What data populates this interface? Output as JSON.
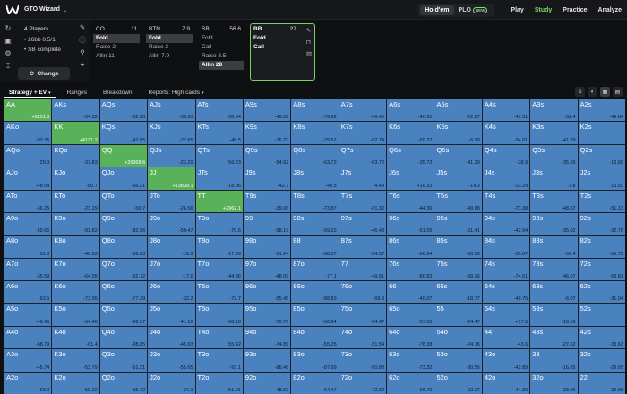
{
  "app": {
    "title": "GTO Wizard"
  },
  "nav": {
    "modes": [
      "Hold'em",
      "PLO"
    ],
    "new_badge": "NEW",
    "items": [
      "Play",
      "Study",
      "Practice",
      "Analyze"
    ]
  },
  "spot": {
    "title": "4 Players",
    "line1": "26bb 0.5/1",
    "line2": "SB complete",
    "change": "Change"
  },
  "positions": [
    {
      "name": "CO",
      "stack": "11",
      "actions": [
        "Fold",
        "Raise 2",
        "Allin 11"
      ],
      "selected": 0
    },
    {
      "name": "BTN",
      "stack": "7.9",
      "actions": [
        "Fold",
        "Raise 2",
        "Allin 7.9"
      ],
      "selected": 0
    },
    {
      "name": "SB",
      "stack": "56.6",
      "actions": [
        "Fold",
        "Call",
        "Raise 3.5",
        "Allin 28"
      ],
      "selected": 3
    },
    {
      "name": "BB",
      "stack": "27",
      "actions": [
        "Fold",
        "Call"
      ]
    }
  ],
  "tabs": {
    "strategy": "Strategy + EV",
    "ranges": "Ranges",
    "breakdown": "Breakdown",
    "reports": "Reports: High cards"
  },
  "colors": {
    "accent": "#7fd36f",
    "fold": "#4a82c0",
    "call": "#59b15a"
  },
  "matrix": {
    "hands": [
      [
        "AA",
        "AKs",
        "AQs",
        "AJs",
        "ATs",
        "A9s",
        "A8s",
        "A7s",
        "A6s",
        "A5s",
        "A4s",
        "A3s",
        "A2s"
      ],
      [
        "AKo",
        "KK",
        "KQs",
        "KJs",
        "KTs",
        "K9s",
        "K8s",
        "K7s",
        "K6s",
        "K5s",
        "K4s",
        "K3s",
        "K2s"
      ],
      [
        "AQo",
        "KQo",
        "QQ",
        "QJs",
        "QTs",
        "Q9s",
        "Q8s",
        "Q7s",
        "Q6s",
        "Q5s",
        "Q4s",
        "Q3s",
        "Q2s"
      ],
      [
        "AJo",
        "KJo",
        "QJo",
        "JJ",
        "JTs",
        "J9s",
        "J8s",
        "J7s",
        "J6s",
        "J5s",
        "J4s",
        "J3s",
        "J2s"
      ],
      [
        "ATo",
        "KTo",
        "QTo",
        "JTo",
        "TT",
        "T9s",
        "T8s",
        "T7s",
        "T6s",
        "T5s",
        "T4s",
        "T3s",
        "T2s"
      ],
      [
        "A9o",
        "K9o",
        "Q9o",
        "J9o",
        "T9o",
        "99",
        "98s",
        "97s",
        "96s",
        "95s",
        "94s",
        "93s",
        "92s"
      ],
      [
        "A8o",
        "K8o",
        "Q8o",
        "J8o",
        "T8o",
        "98o",
        "88",
        "87s",
        "86s",
        "85s",
        "84s",
        "83s",
        "82s"
      ],
      [
        "A7o",
        "K7o",
        "Q7o",
        "J7o",
        "T7o",
        "97o",
        "87o",
        "77",
        "76s",
        "75s",
        "74s",
        "73s",
        "72s"
      ],
      [
        "A6o",
        "K6o",
        "Q6o",
        "J6o",
        "T6o",
        "96o",
        "86o",
        "76o",
        "66",
        "65s",
        "64s",
        "63s",
        "62s"
      ],
      [
        "A5o",
        "K5o",
        "Q5o",
        "J5o",
        "T5o",
        "95o",
        "85o",
        "75o",
        "65o",
        "55",
        "54s",
        "53s",
        "52s"
      ],
      [
        "A4o",
        "K4o",
        "Q4o",
        "J4o",
        "T4o",
        "94o",
        "84o",
        "74o",
        "64o",
        "54o",
        "44",
        "43s",
        "42s"
      ],
      [
        "A3o",
        "K3o",
        "Q3o",
        "J3o",
        "T3o",
        "93o",
        "83o",
        "73o",
        "63o",
        "53o",
        "43o",
        "33",
        "32s"
      ],
      [
        "A2o",
        "K2o",
        "Q2o",
        "J2o",
        "T2o",
        "92o",
        "82o",
        "72o",
        "62o",
        "52o",
        "42o",
        "32o",
        "22"
      ]
    ],
    "evs": [
      [
        "+5251.0",
        "-54.52",
        "-52.23",
        "-30.33",
        "-38.34",
        "-43.32",
        "-79.62",
        "-49.45",
        "-40.91",
        "-22.87",
        "-47.31",
        "-32.4",
        "-49.84"
      ],
      [
        "-50.35",
        "+4131.2",
        "-47.65",
        "-22.65",
        "-48.5",
        "-76.23",
        "-79.57",
        "-62.74",
        "-59.27",
        "-6.98",
        "-34.61",
        "-41.29",
        ""
      ],
      [
        "-29.3",
        "-37.83",
        "+26368.6",
        "-23.29",
        "-56.23",
        "-54.92",
        "-63.72",
        "-63.72",
        "-35.72",
        "-41.29",
        "-38.9",
        "-35.55",
        "-13.68"
      ],
      [
        "-48.04",
        "-80.7",
        "-66.21",
        "+13839.1",
        "-18.96",
        "-42.7",
        "-49.5",
        "-4.49",
        "+16.33",
        "-14.3",
        "-23.29",
        "-7.8",
        "-13.50"
      ],
      [
        "-36.25",
        "-23.29",
        "-50.7",
        "-26.56",
        "+2962.1",
        "-39.06",
        "-73.87",
        "-61.32",
        "-44.36",
        "-49.68",
        "-73.38",
        "-48.87",
        "-51.13"
      ],
      [
        "-59.66",
        "-81.82",
        "-82.96",
        "-50.47",
        "-70.5",
        "-98.19",
        "-69.23",
        "-46.48",
        "-51.05",
        "-11.41",
        "-42.94",
        "-35.02",
        "-32.76"
      ],
      [
        "-51.8",
        "-46.03",
        "-36.83",
        "-18.9",
        "-17.99",
        "-51.24",
        "-88.37",
        "-64.57",
        "-66.84",
        "-65.69",
        "-35.67",
        "-56.4",
        "-35.79"
      ],
      [
        "-35.59",
        "-64.05",
        "-52.72",
        "-17.0",
        "-44.36",
        "-48.09",
        "-77.1",
        "-49.51",
        "-86.83",
        "-58.26",
        "-74.51",
        "-46.07",
        "-53.81"
      ],
      [
        "-63.5",
        "-73.95",
        "-77.29",
        "-32.2",
        "-72.7",
        "-55.45",
        "-88.83",
        "-69.9",
        "-46.07",
        "-18.77",
        "-49.75",
        "-6.07",
        "-31.04"
      ],
      [
        "-49.45",
        "-54.46",
        "-69.37",
        "-41.16",
        "-60.18",
        "-75.76",
        "-56.64",
        "-64.47",
        "-57.55",
        "-24.47",
        "+17.5",
        "-10.59",
        ""
      ],
      [
        "-68.79",
        "-61.4",
        "-28.85",
        "-45.63",
        "-55.42",
        "-74.89",
        "-55.25",
        "-51.54",
        "-78.38",
        "-24.76",
        "-43.6",
        "-27.62",
        "-33.63"
      ],
      [
        "-45.74",
        "-53.79",
        "-51.31",
        "-55.65",
        "-93.1",
        "-86.48",
        "-87.69",
        "-50.88",
        "-73.32",
        "-30.56",
        "-42.89",
        "-16.85",
        "-29.65"
      ],
      [
        "-63.4",
        "-59.22",
        "-55.72",
        "-24.1",
        "-51.01",
        "-48.62",
        "-64.47",
        "-72.02",
        "-66.79",
        "-52.27",
        "-44.39",
        "-33.96",
        "-39.06"
      ]
    ],
    "green": [
      "AA",
      "KK",
      "QQ",
      "JJ",
      "TT"
    ]
  }
}
